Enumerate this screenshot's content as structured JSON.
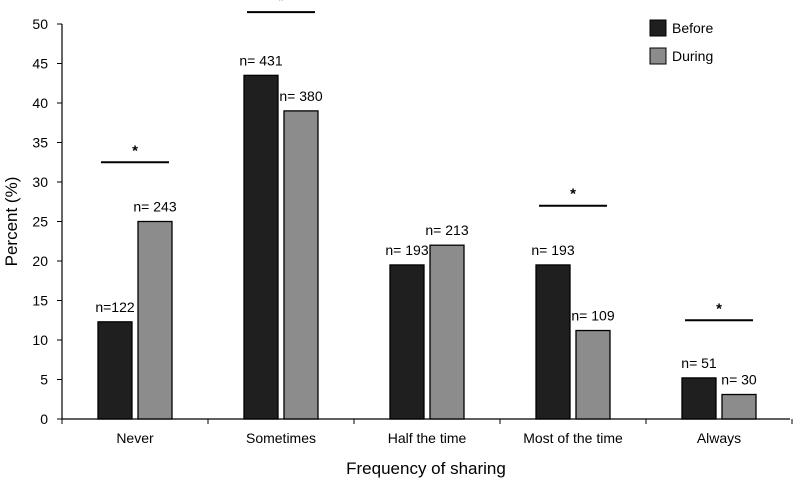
{
  "chart_data": {
    "type": "bar",
    "title": "",
    "xlabel": "Frequency of sharing",
    "ylabel": "Percent (%)",
    "ylim": [
      0,
      50
    ],
    "yticks": [
      0,
      5,
      10,
      15,
      20,
      25,
      30,
      35,
      40,
      45,
      50
    ],
    "categories": [
      "Never",
      "Sometimes",
      "Half the time",
      "Most of the time",
      "Always"
    ],
    "series": [
      {
        "name": "Before",
        "color": "#1f1f1f",
        "values": [
          12.3,
          43.5,
          19.5,
          19.5,
          5.2
        ],
        "labels": [
          "n=122",
          "n= 431",
          "n= 193",
          "n= 193",
          "n= 51"
        ]
      },
      {
        "name": "During",
        "color": "#8c8c8c",
        "values": [
          25.0,
          39.0,
          22.0,
          11.2,
          3.1
        ],
        "labels": [
          "n= 243",
          "n= 380",
          "n= 213",
          "n= 109",
          "n= 30"
        ]
      }
    ],
    "significance": [
      {
        "category_index": 0,
        "level": 32.5,
        "mark": "*"
      },
      {
        "category_index": 1,
        "level": 51.5,
        "mark": "*"
      },
      {
        "category_index": 3,
        "level": 27.0,
        "mark": "*"
      },
      {
        "category_index": 4,
        "level": 12.5,
        "mark": "*"
      }
    ],
    "legend_position": "top-right",
    "grid": false
  }
}
